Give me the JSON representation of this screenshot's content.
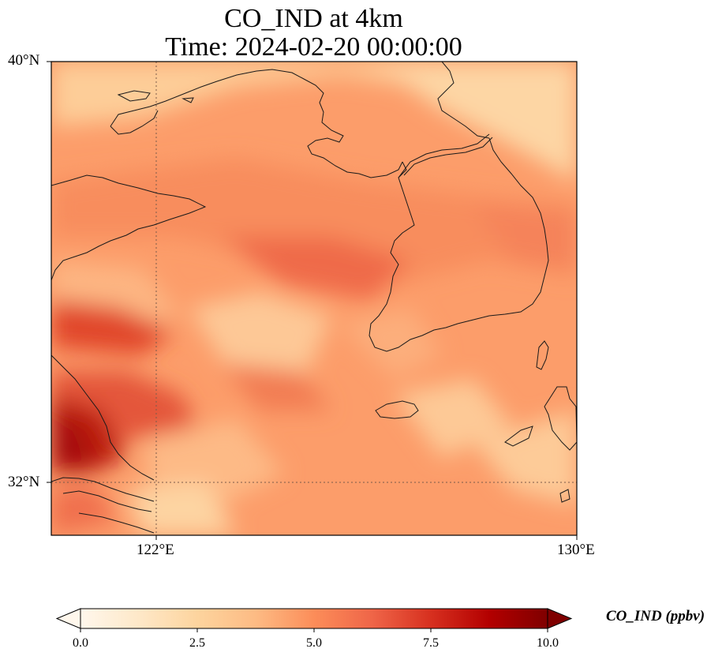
{
  "title": {
    "line1": "CO_IND at 4km",
    "line2": "Time: 2024-02-20 00:00:00"
  },
  "map": {
    "variable": "CO_IND",
    "units": "ppbv",
    "extent": {
      "lon_min": 120.0,
      "lon_max": 130.0,
      "lat_min": 31.0,
      "lat_max": 40.0
    },
    "gridlines": {
      "lons": [
        122,
        130
      ],
      "lats": [
        32,
        40
      ],
      "style": "dotted"
    },
    "lat_labels": [
      {
        "lat": 40,
        "text": "40°N"
      },
      {
        "lat": 32,
        "text": "32°N"
      }
    ],
    "lon_labels": [
      {
        "lon": 122,
        "text": "122°E"
      },
      {
        "lon": 130,
        "text": "130°E"
      }
    ],
    "colormap": "OrRd",
    "field_description_regions": [
      {
        "lon": 120.5,
        "lat": 32.7,
        "value": 9.5
      },
      {
        "lon": 121.0,
        "lat": 34.0,
        "value": 7.0
      },
      {
        "lon": 125.3,
        "lat": 35.8,
        "value": 5.8
      },
      {
        "lon": 128.5,
        "lat": 36.0,
        "value": 5.0
      },
      {
        "lon": 129.0,
        "lat": 39.5,
        "value": 2.2
      },
      {
        "lon": 128.0,
        "lat": 32.7,
        "value": 2.5
      },
      {
        "lon": 122.3,
        "lat": 31.5,
        "value": 2.2
      }
    ]
  },
  "colorbar": {
    "label": "CO_IND (ppbv)",
    "min": 0.0,
    "max": 10.0,
    "extend": "both",
    "ticks": [
      {
        "value": 0.0,
        "text": "0.0"
      },
      {
        "value": 2.5,
        "text": "2.5"
      },
      {
        "value": 5.0,
        "text": "5.0"
      },
      {
        "value": 7.5,
        "text": "7.5"
      },
      {
        "value": 10.0,
        "text": "10.0"
      }
    ],
    "colors": [
      "#fff7ec",
      "#fee8c8",
      "#fdd49e",
      "#fdbb84",
      "#fc8d59",
      "#ef6548",
      "#d7301f",
      "#b30000",
      "#7f0000"
    ]
  }
}
